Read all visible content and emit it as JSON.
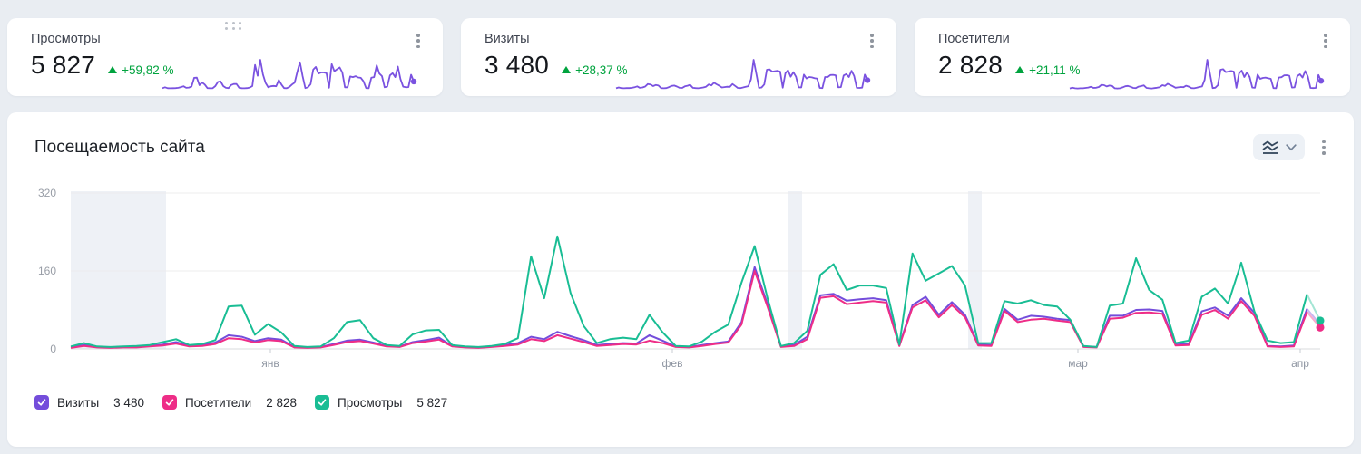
{
  "colors": {
    "visits": "#744ddb",
    "visitors": "#ee2d87",
    "views": "#19bd94",
    "sparkline": "#7a52e0",
    "delta_up": "#00a33e",
    "background": "#e9edf2",
    "card": "#ffffff"
  },
  "icons": {
    "card_menu": "kebab-vertical-icon",
    "drag": "drag-dots-icon",
    "chart_type": "line-chart-icon",
    "chevron": "chevron-down-icon",
    "legend_check": "checkmark-icon",
    "delta": "triangle-up-icon"
  },
  "cards": [
    {
      "title": "Просмотры",
      "value": "5 827",
      "delta": "+59,82 %",
      "series_key": "views"
    },
    {
      "title": "Визиты",
      "value": "3 480",
      "delta": "+28,37 %",
      "series_key": "visits"
    },
    {
      "title": "Посетители",
      "value": "2 828",
      "delta": "+21,11 %",
      "series_key": "visitors"
    }
  ],
  "main_chart": {
    "title": "Посещаемость сайта"
  },
  "legend": [
    {
      "label": "Визиты",
      "value": "3 480",
      "checked": true
    },
    {
      "label": "Посетители",
      "value": "2 828",
      "checked": true
    },
    {
      "label": "Просмотры",
      "value": "5 827",
      "checked": true
    }
  ],
  "chart_data": {
    "type": "line",
    "title": "Посещаемость сайта",
    "xlabel": "",
    "ylabel": "",
    "ylim": [
      0,
      320
    ],
    "y_tick_labels": [
      "0",
      "160",
      "320"
    ],
    "x_tick_labels": [
      "янв",
      "фев",
      "мар",
      "апр"
    ],
    "grid": true,
    "legend_position": "bottom",
    "note": "daily values mid-December through early April, estimated from gridlines; last point is an incomplete day drawn faded with end dots",
    "series": [
      {
        "name": "Визиты",
        "key": "visits",
        "total": "3 480",
        "color": "#744ddb",
        "values": [
          3,
          8,
          4,
          3,
          4,
          4,
          6,
          9,
          14,
          6,
          8,
          13,
          28,
          25,
          16,
          22,
          19,
          4,
          3,
          4,
          10,
          17,
          19,
          13,
          6,
          5,
          14,
          18,
          23,
          6,
          4,
          3,
          5,
          8,
          12,
          25,
          20,
          35,
          26,
          18,
          8,
          10,
          12,
          11,
          28,
          17,
          5,
          4,
          8,
          12,
          15,
          55,
          168,
          90,
          5,
          8,
          25,
          110,
          113,
          99,
          102,
          104,
          100,
          7,
          90,
          107,
          70,
          96,
          70,
          9,
          8,
          82,
          60,
          68,
          66,
          62,
          59,
          5,
          4,
          68,
          68,
          80,
          81,
          78,
          9,
          10,
          77,
          85,
          68,
          104,
          74,
          6,
          5,
          7,
          82,
          50
        ]
      },
      {
        "name": "Посетители",
        "key": "visitors",
        "total": "2 828",
        "color": "#ee2d87",
        "values": [
          2,
          6,
          3,
          2,
          3,
          3,
          5,
          7,
          11,
          5,
          6,
          10,
          22,
          20,
          13,
          18,
          16,
          3,
          2,
          3,
          8,
          14,
          16,
          11,
          5,
          4,
          12,
          15,
          19,
          5,
          3,
          2,
          4,
          6,
          9,
          20,
          16,
          28,
          21,
          14,
          6,
          8,
          10,
          9,
          17,
          12,
          4,
          3,
          6,
          10,
          13,
          50,
          160,
          85,
          4,
          6,
          20,
          105,
          108,
          92,
          95,
          98,
          95,
          6,
          85,
          100,
          65,
          90,
          65,
          7,
          6,
          78,
          55,
          60,
          62,
          58,
          55,
          4,
          3,
          62,
          64,
          74,
          75,
          72,
          7,
          8,
          70,
          80,
          62,
          98,
          68,
          5,
          4,
          5,
          76,
          44
        ]
      },
      {
        "name": "Просмотры",
        "key": "views",
        "total": "5 827",
        "color": "#19bd94",
        "values": [
          5,
          12,
          5,
          4,
          5,
          6,
          8,
          14,
          20,
          8,
          10,
          18,
          87,
          89,
          29,
          51,
          34,
          6,
          4,
          5,
          22,
          55,
          59,
          22,
          8,
          6,
          30,
          38,
          39,
          8,
          5,
          4,
          6,
          10,
          22,
          190,
          104,
          231,
          115,
          47,
          12,
          20,
          23,
          20,
          70,
          34,
          6,
          5,
          15,
          35,
          50,
          136,
          211,
          102,
          6,
          12,
          37,
          152,
          174,
          121,
          130,
          130,
          125,
          9,
          196,
          140,
          155,
          170,
          130,
          12,
          12,
          98,
          93,
          100,
          90,
          87,
          60,
          6,
          4,
          89,
          93,
          186,
          121,
          101,
          12,
          17,
          107,
          124,
          93,
          177,
          77,
          17,
          12,
          14,
          112,
          58
        ]
      }
    ]
  }
}
